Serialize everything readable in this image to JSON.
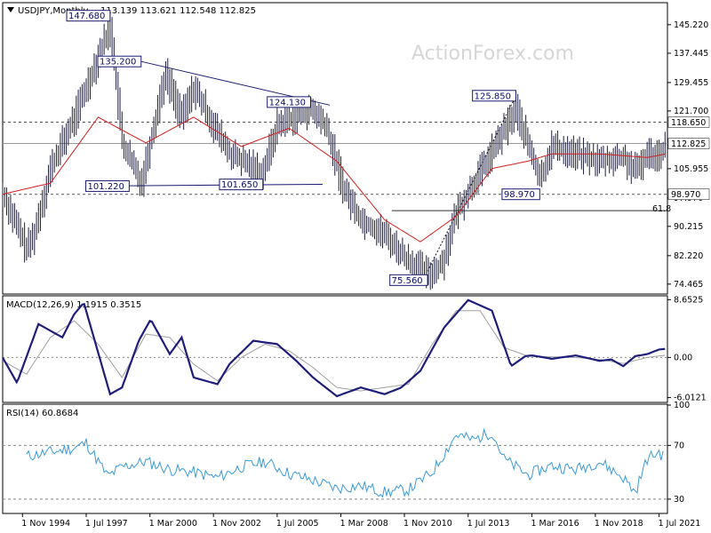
{
  "price_panel": {
    "symbol": "USDJPY,Monthly",
    "ohlc": "113.139 113.621 112.548 112.825",
    "watermark": "ActionForex.com",
    "annotations": [
      {
        "text": "147.680",
        "x": 1998.5,
        "y": 147.68
      },
      {
        "text": "135.200",
        "x": 1999.8,
        "y": 135.2
      },
      {
        "text": "124.130",
        "x": 2006.9,
        "y": 124.13
      },
      {
        "text": "101.220",
        "x": 1999.3,
        "y": 101.22
      },
      {
        "text": "101.650",
        "x": 2004.9,
        "y": 101.65
      },
      {
        "text": "75.560",
        "x": 2011.8,
        "y": 75.56
      },
      {
        "text": "125.850",
        "x": 2015.5,
        "y": 125.85
      },
      {
        "text": "98.970",
        "x": 2016.5,
        "y": 98.97
      }
    ],
    "fib_label": "61.8",
    "last_price": "112.825",
    "level_118": "118.650",
    "level_98": "98.970"
  },
  "macd_panel": {
    "label": "MACD(12,26,9) 1.1915 0.3515"
  },
  "rsi_panel": {
    "label": "RSI(14) 60.8684"
  },
  "chart_data": [
    {
      "type": "line",
      "title": "USDJPY,Monthly",
      "ylim": [
        72,
        151
      ],
      "y_ticks": [
        145.22,
        137.445,
        129.455,
        121.7,
        105.955,
        97.97,
        90.215,
        82.22,
        74.465
      ],
      "x_tick_labels": [
        "1 Nov 1994",
        "1 Jul 1997",
        "1 Mar 2000",
        "1 Nov 2002",
        "1 Jul 2005",
        "1 Mar 2008",
        "1 Nov 2010",
        "1 Jul 2013",
        "1 Mar 2016",
        "1 Nov 2018",
        "1 Jul 2021"
      ],
      "x_tick_years": [
        1994.83,
        1997.5,
        2000.17,
        2002.83,
        2005.5,
        2008.17,
        2010.83,
        2013.5,
        2016.17,
        2018.83,
        2021.5
      ],
      "horizontal_levels": [
        118.65,
        98.97
      ],
      "fib_level": 94.5,
      "series": [
        {
          "role": "close",
          "color": "#1e1e3f",
          "x": [
            1994.0,
            1995.0,
            1995.3,
            1996.0,
            1997.0,
            1998.5,
            1999.0,
            1999.8,
            2000.0,
            2000.8,
            2001.5,
            2002.0,
            2002.8,
            2003.5,
            2004.0,
            2004.9,
            2005.5,
            2006.9,
            2007.5,
            2008.3,
            2009.0,
            2010.0,
            2010.8,
            2011.8,
            2012.4,
            2013.0,
            2014.0,
            2015.5,
            2016.5,
            2017.0,
            2018.0,
            2019.0,
            2020.0,
            2020.5,
            2021.0,
            2021.5,
            2021.8
          ],
          "y": [
            99,
            84,
            88,
            106,
            120,
            145,
            113,
            102,
            108,
            132,
            120,
            128,
            118,
            110,
            108,
            105,
            118,
            122,
            118,
            100,
            92,
            88,
            82,
            77,
            80,
            94,
            105,
            122,
            103,
            112,
            110,
            108,
            109,
            105,
            110,
            110,
            113
          ]
        },
        {
          "role": "moving_average",
          "color": "#d21e1e",
          "x": [
            1994.0,
            1996.0,
            1998.0,
            2000.0,
            2002.0,
            2004.0,
            2006.0,
            2008.0,
            2010.0,
            2011.5,
            2013.0,
            2014.5,
            2016.0,
            2017.0,
            2019.0,
            2021.0,
            2021.8
          ],
          "y": [
            99,
            102,
            120,
            113,
            120,
            112,
            117,
            108,
            92,
            86,
            93,
            106,
            108,
            110,
            110,
            109,
            110
          ]
        }
      ]
    },
    {
      "type": "line",
      "title": "MACD(12,26,9) 1.1915 0.3515",
      "ylim": [
        -6.6,
        9.1
      ],
      "y_ticks": [
        8.6525,
        0.0,
        -6.0121
      ],
      "series": [
        {
          "name": "MACD",
          "color": "#1e1e7a",
          "x": [
            1994,
            1994.6,
            1995.5,
            1996.5,
            1997.0,
            1997.4,
            1998.5,
            1999.0,
            1999.7,
            2000.2,
            2001.0,
            2001.5,
            2002.0,
            2003.0,
            2003.5,
            2004.5,
            2005.5,
            2006.3,
            2007.0,
            2008.0,
            2009.0,
            2010.0,
            2010.7,
            2011.5,
            2012.5,
            2013.5,
            2014.5,
            2015.3,
            2015.9,
            2016.2,
            2017.0,
            2018.0,
            2019.0,
            2019.5,
            2020.0,
            2020.5,
            2021.0,
            2021.5,
            2021.8
          ],
          "y": [
            0,
            -3.8,
            5,
            3,
            6.5,
            8.2,
            -5.5,
            -4.5,
            2.5,
            5.7,
            0.5,
            3,
            -3,
            -4,
            -1,
            2.5,
            2,
            -0.5,
            -3,
            -5.8,
            -4.5,
            -5.5,
            -4.5,
            -2,
            4.5,
            8.6,
            7,
            -1.3,
            0.2,
            0.3,
            -0.2,
            0.3,
            -0.5,
            -0.3,
            -1.3,
            0.2,
            0.5,
            1.2,
            1.3
          ]
        },
        {
          "name": "Signal",
          "color": "#a0a0a0",
          "x": [
            1994,
            1995,
            1996,
            1997,
            1998,
            1999,
            2000,
            2001,
            2002,
            2003,
            2004,
            2005,
            2006,
            2007,
            2008,
            2009,
            2010,
            2011,
            2012,
            2013,
            2014,
            2015,
            2016,
            2017,
            2018,
            2019,
            2020,
            2021,
            2021.8
          ],
          "y": [
            -0.5,
            -2.5,
            3,
            5.5,
            2,
            -3,
            3.5,
            3,
            -1,
            -3.5,
            0,
            2,
            1,
            -1.5,
            -4.5,
            -5,
            -4.5,
            -4,
            2,
            7,
            7,
            1.5,
            0.2,
            0.1,
            0,
            -0.3,
            -0.9,
            0,
            0.35
          ]
        }
      ]
    },
    {
      "type": "line",
      "title": "RSI(14) 60.8684",
      "ylim": [
        20,
        100
      ],
      "y_ticks": [
        100,
        70,
        30
      ],
      "series": [
        {
          "name": "RSI",
          "color": "#3a9bd6",
          "x": [
            1995.0,
            1996.0,
            1997.0,
            1997.5,
            1998.4,
            1999.0,
            2000.0,
            2001.0,
            2002.0,
            2003.0,
            2004.0,
            2005.0,
            2006.0,
            2007.0,
            2008.0,
            2009.0,
            2010.0,
            2011.0,
            2012.0,
            2013.0,
            2013.7,
            2014.5,
            2015.0,
            2016.0,
            2017.0,
            2018.0,
            2019.0,
            2020.0,
            2020.5,
            2021.0,
            2021.5,
            2021.7
          ],
          "y": [
            62,
            65,
            68,
            72,
            47,
            54,
            58,
            52,
            50,
            46,
            54,
            58,
            49,
            44,
            38,
            40,
            35,
            37,
            50,
            78,
            74,
            80,
            60,
            48,
            55,
            52,
            58,
            46,
            35,
            60,
            65,
            61
          ]
        }
      ]
    }
  ]
}
